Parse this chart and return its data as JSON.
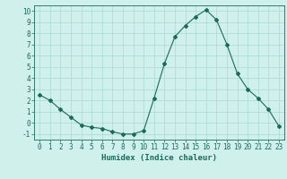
{
  "x": [
    0,
    1,
    2,
    3,
    4,
    5,
    6,
    7,
    8,
    9,
    10,
    11,
    12,
    13,
    14,
    15,
    16,
    17,
    18,
    19,
    20,
    21,
    22,
    23
  ],
  "y": [
    2.5,
    2.0,
    1.2,
    0.5,
    -0.2,
    -0.4,
    -0.5,
    -0.8,
    -1.0,
    -1.0,
    -0.7,
    2.2,
    5.3,
    7.7,
    8.7,
    9.5,
    10.1,
    9.2,
    7.0,
    4.4,
    3.0,
    2.2,
    1.2,
    -0.3
  ],
  "line_color": "#1a6b5a",
  "marker": "D",
  "marker_size": 2,
  "xlabel": "Humidex (Indice chaleur)",
  "xlim": [
    -0.5,
    23.5
  ],
  "ylim": [
    -1.5,
    10.5
  ],
  "yticks": [
    -1,
    0,
    1,
    2,
    3,
    4,
    5,
    6,
    7,
    8,
    9,
    10
  ],
  "xticks": [
    0,
    1,
    2,
    3,
    4,
    5,
    6,
    7,
    8,
    9,
    10,
    11,
    12,
    13,
    14,
    15,
    16,
    17,
    18,
    19,
    20,
    21,
    22,
    23
  ],
  "background_color": "#cff0eb",
  "grid_color": "#aad9d3",
  "line_width": 0.8,
  "tick_color": "#1a6b5a",
  "label_color": "#1a6b5a",
  "font_size": 5.5,
  "xlabel_fontsize": 6.5
}
